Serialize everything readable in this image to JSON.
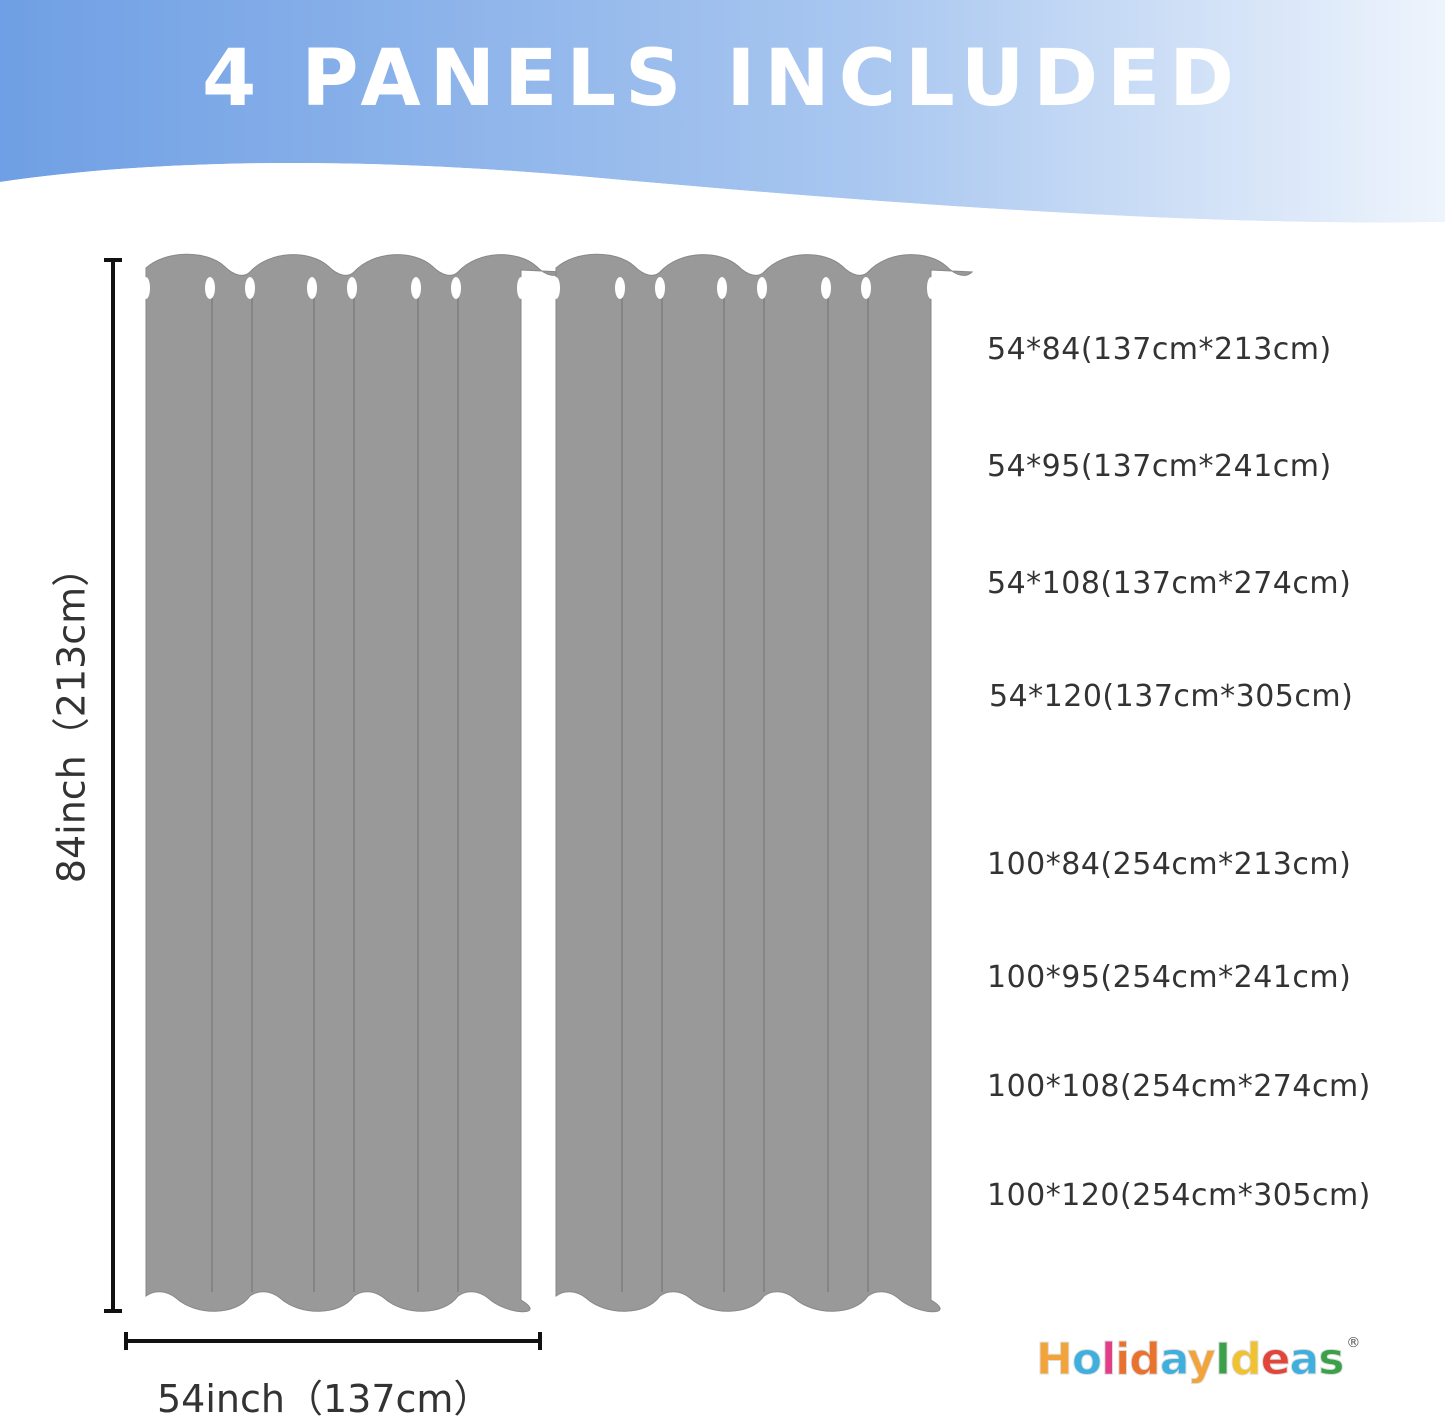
{
  "title": "4 PANELS INCLUDED",
  "dimensions": {
    "width_label": "54inch（137cm）",
    "height_label": "84inch（213cm）"
  },
  "sizes": [
    "54*84(137cm*213cm)",
    "54*95(137cm*241cm)",
    "54*108(137cm*274cm)",
    "54*120(137cm*305cm)",
    "100*84(254cm*213cm)",
    "100*95(254cm*241cm)",
    "100*108(254cm*274cm)",
    "100*120(254cm*305cm)"
  ],
  "brand": {
    "name": "HolidayIdeas",
    "registered": "®"
  },
  "colors": {
    "banner_blue": "#74a2e6",
    "curtain": "#999999",
    "text": "#333333"
  }
}
